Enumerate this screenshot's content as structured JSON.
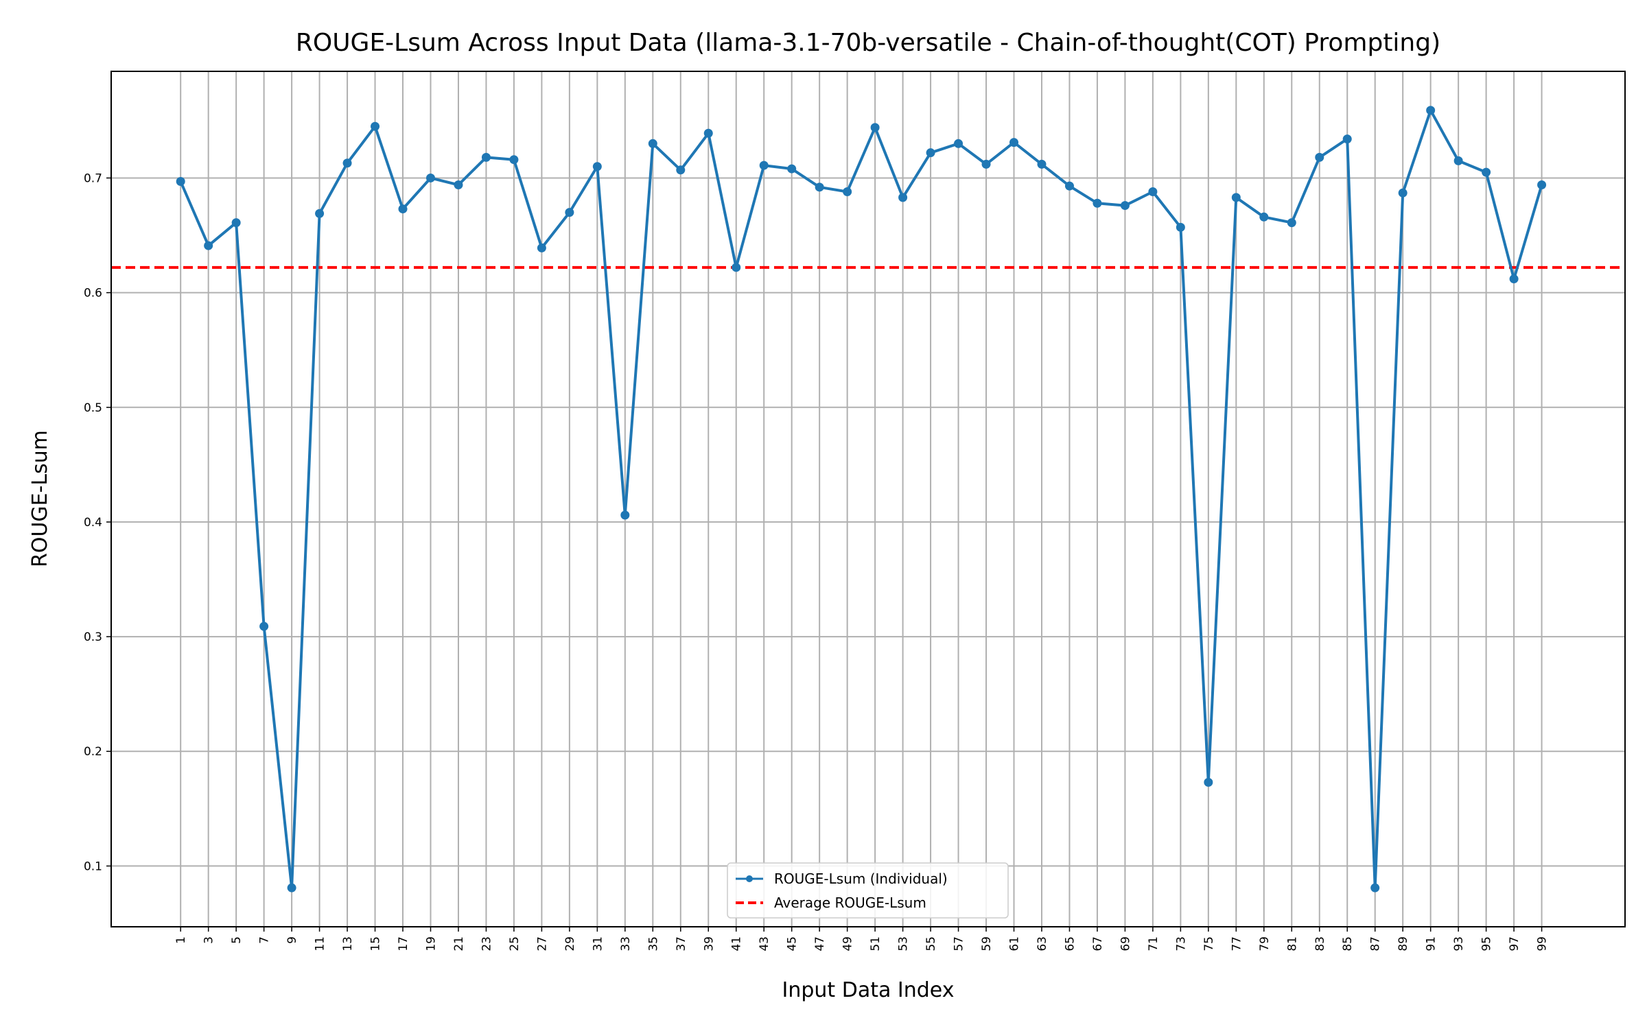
{
  "chart_data": {
    "type": "line",
    "title": "ROUGE-Lsum Across Input Data (llama-3.1-70b-versatile - Chain-of-thought(COT) Prompting)",
    "xlabel": "Input Data Index",
    "ylabel": "ROUGE-Lsum",
    "x": [
      1,
      3,
      5,
      7,
      9,
      11,
      13,
      15,
      17,
      19,
      21,
      23,
      25,
      27,
      29,
      31,
      33,
      35,
      37,
      39,
      41,
      43,
      45,
      47,
      49,
      51,
      53,
      55,
      57,
      59,
      61,
      63,
      65,
      67,
      69,
      71,
      73,
      75,
      77,
      79,
      81,
      83,
      85,
      87,
      89,
      91,
      93,
      95,
      97,
      99
    ],
    "xticks": [
      "1",
      "3",
      "5",
      "7",
      "9",
      "11",
      "13",
      "15",
      "17",
      "19",
      "21",
      "23",
      "25",
      "27",
      "29",
      "31",
      "33",
      "35",
      "37",
      "39",
      "41",
      "43",
      "45",
      "47",
      "49",
      "51",
      "53",
      "55",
      "57",
      "59",
      "61",
      "63",
      "65",
      "67",
      "69",
      "71",
      "73",
      "75",
      "77",
      "79",
      "81",
      "83",
      "85",
      "87",
      "89",
      "91",
      "93",
      "95",
      "97",
      "99"
    ],
    "xlim": [
      -4,
      105
    ],
    "ylim": [
      0.047,
      0.793
    ],
    "yticks": [
      "0.1",
      "0.2",
      "0.3",
      "0.4",
      "0.5",
      "0.6",
      "0.7"
    ],
    "grid": true,
    "legend_position": "lower center",
    "series": [
      {
        "name": "ROUGE-Lsum (Individual)",
        "color": "#1f77b4",
        "marker": "circle",
        "values": [
          0.697,
          0.641,
          0.661,
          0.309,
          0.081,
          0.669,
          0.713,
          0.745,
          0.673,
          0.7,
          0.694,
          0.718,
          0.716,
          0.639,
          0.67,
          0.71,
          0.406,
          0.73,
          0.707,
          0.739,
          0.622,
          0.711,
          0.708,
          0.692,
          0.688,
          0.744,
          0.683,
          0.722,
          0.73,
          0.712,
          0.731,
          0.712,
          0.693,
          0.678,
          0.676,
          0.688,
          0.657,
          0.173,
          0.683,
          0.666,
          0.661,
          0.718,
          0.734,
          0.081,
          0.687,
          0.759,
          0.715,
          0.705,
          0.612,
          0.694
        ]
      }
    ],
    "reference_lines": [
      {
        "name": "Average ROUGE-Lsum",
        "y": 0.622,
        "color": "#ff0000",
        "style": "dashed"
      }
    ]
  }
}
